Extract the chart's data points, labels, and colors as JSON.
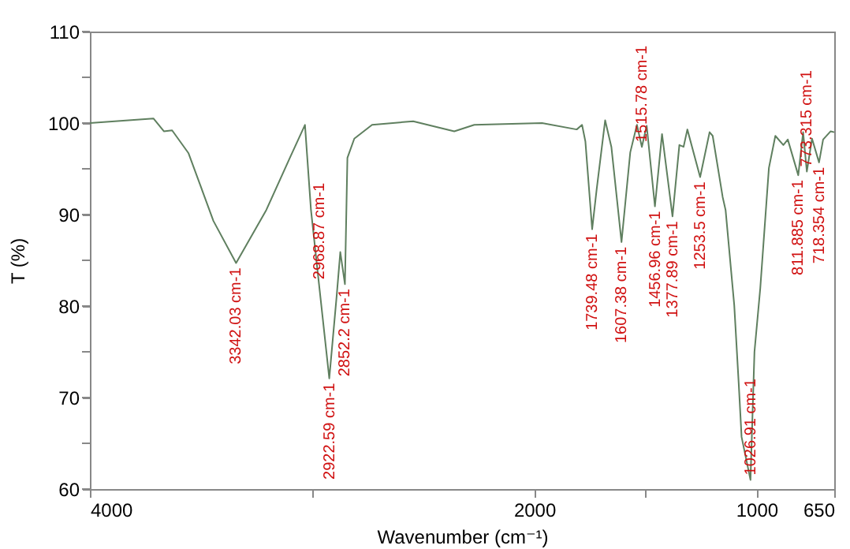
{
  "chart_data": {
    "type": "line",
    "xlabel": "Wavenumber (cm⁻¹)",
    "ylabel": "T (%)",
    "xlim": [
      4000,
      650
    ],
    "xticks": [
      4000,
      {
        "value": 3000,
        "label": null
      },
      2000,
      {
        "value": 1500,
        "label": null
      },
      1000,
      650
    ],
    "ylim": [
      60,
      110
    ],
    "yticks": [
      60,
      {
        "value": 65,
        "label": null
      },
      70,
      {
        "value": 75,
        "label": null
      },
      80,
      {
        "value": 85,
        "label": null
      },
      90,
      {
        "value": 95,
        "label": null
      },
      100,
      {
        "value": 105,
        "label": null
      },
      110
    ],
    "grid": false,
    "marker": "none",
    "line_style": "solid",
    "series": [
      {
        "color": "#5f7f5f",
        "x": [
          4000,
          3714,
          3667,
          3630,
          3556,
          3444,
          3342.03,
          3206,
          3100,
          3032,
          3005,
          2968.87,
          2922.59,
          2889,
          2873,
          2852.2,
          2841,
          2810,
          2730,
          2545,
          2360,
          2270,
          1965,
          1809,
          1785,
          1770,
          1739.48,
          1719,
          1681,
          1653,
          1607.38,
          1568,
          1538,
          1515.78,
          1494,
          1456.96,
          1425,
          1377.89,
          1347,
          1328,
          1311,
          1253.5,
          1211,
          1197,
          1152,
          1139,
          1100,
          1080,
          1067,
          1026.91,
          1009,
          983,
          944,
          915,
          879,
          859,
          811.885,
          790,
          773.315,
          750,
          718.354,
          700,
          666,
          650
        ],
        "values": [
          100.0,
          100.5,
          99.1,
          99.2,
          96.7,
          89.3,
          84.7,
          90.5,
          96.2,
          99.8,
          90.5,
          82.4,
          72.1,
          81.2,
          85.9,
          82.4,
          96.2,
          98.3,
          99.8,
          100.2,
          99.1,
          99.8,
          100.0,
          99.3,
          99.8,
          98.0,
          88.4,
          92.8,
          100.3,
          97.4,
          87.0,
          96.8,
          99.8,
          97.4,
          99.7,
          90.9,
          98.8,
          89.8,
          97.6,
          97.4,
          99.3,
          94.1,
          99.0,
          98.6,
          91.9,
          90.5,
          80.1,
          71.6,
          65.7,
          61.0,
          75.0,
          81.9,
          95.1,
          98.6,
          97.6,
          98.2,
          94.3,
          99.0,
          94.7,
          98.3,
          95.7,
          98.2,
          99.1,
          99.0
        ]
      }
    ],
    "annotations": [
      {
        "text": "3342.03 cm-1",
        "x": 3342.03,
        "y": 84.7
      },
      {
        "text": "2968.87 cm-1",
        "x": 2968.87,
        "y": 82.4
      },
      {
        "text": "2922.59 cm-1",
        "x": 2922.59,
        "y": 72.1
      },
      {
        "text": "2852.2 cm-1",
        "x": 2852.2,
        "y": 82.4
      },
      {
        "text": "1739.48 cm-1",
        "x": 1739.48,
        "y": 88.4
      },
      {
        "text": "1607.38 cm-1",
        "x": 1607.38,
        "y": 87.0
      },
      {
        "text": "1515.78 cm-1",
        "x": 1515.78,
        "y": 97.4
      },
      {
        "text": "1456.96 cm-1",
        "x": 1456.96,
        "y": 90.9
      },
      {
        "text": "1377.89 cm-1",
        "x": 1377.89,
        "y": 89.8
      },
      {
        "text": "1253.5 cm-1",
        "x": 1253.5,
        "y": 94.1
      },
      {
        "text": "1026.91 cm-1",
        "x": 1026.91,
        "y": 61.0
      },
      {
        "text": "811.885 cm-1",
        "x": 811.885,
        "y": 94.3
      },
      {
        "text": "773.315 cm-1",
        "x": 773.315,
        "y": 94.7
      },
      {
        "text": "718.354 cm-1",
        "x": 718.354,
        "y": 95.7
      }
    ]
  }
}
